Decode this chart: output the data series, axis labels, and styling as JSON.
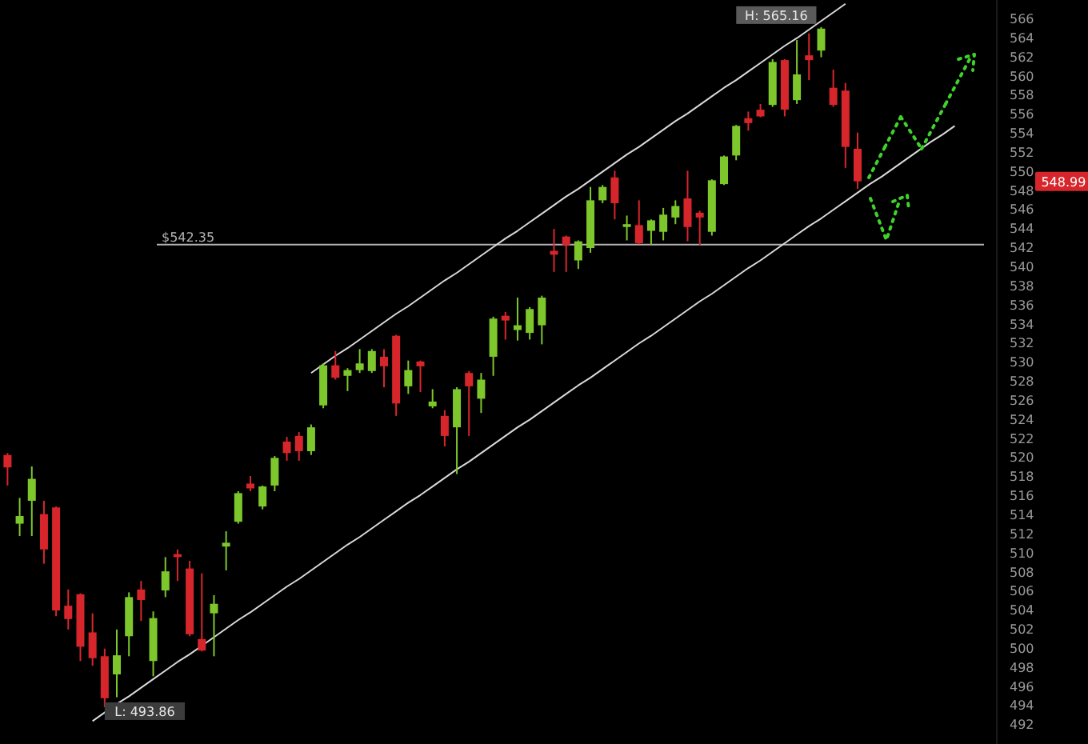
{
  "chart_data": {
    "type": "candlestick",
    "categories": [
      null,
      null,
      null,
      null,
      null,
      null,
      null,
      null,
      null,
      null,
      null,
      null,
      null,
      null,
      null,
      null,
      null,
      null,
      null,
      null,
      null,
      null,
      null,
      null,
      null,
      null,
      null,
      null,
      null,
      null,
      null,
      null,
      null,
      null,
      null,
      null,
      null,
      null,
      null,
      null,
      null,
      null,
      null,
      null,
      null,
      null,
      null,
      null,
      null,
      null,
      null,
      null,
      null,
      null,
      null,
      null,
      null,
      null,
      null,
      null,
      null,
      null,
      null,
      null,
      null,
      null,
      null,
      null,
      null,
      null,
      null,
      null,
      null,
      null,
      null,
      null,
      null,
      null,
      null,
      null,
      null
    ],
    "ohlc": [
      [
        520.3,
        520.5,
        517.1,
        519.0
      ],
      [
        513.1,
        515.8,
        511.8,
        513.9
      ],
      [
        515.5,
        519.1,
        511.8,
        517.8
      ],
      [
        514.1,
        515.5,
        508.9,
        510.4
      ],
      [
        514.8,
        514.9,
        503.4,
        504.0
      ],
      [
        504.5,
        506.2,
        502.0,
        503.1
      ],
      [
        505.7,
        505.8,
        498.7,
        500.2
      ],
      [
        501.7,
        503.7,
        498.2,
        499.0
      ],
      [
        499.2,
        500.0,
        493.86,
        494.8
      ],
      [
        497.3,
        502.0,
        494.9,
        499.3
      ],
      [
        501.3,
        505.9,
        499.2,
        505.4
      ],
      [
        506.2,
        507.1,
        502.9,
        505.1
      ],
      [
        498.7,
        503.9,
        497.1,
        503.2
      ],
      [
        506.1,
        509.6,
        505.4,
        508.1
      ],
      [
        509.9,
        510.4,
        507.1,
        509.6
      ],
      [
        508.4,
        509.2,
        501.3,
        501.5
      ],
      [
        501.0,
        507.9,
        499.7,
        499.8
      ],
      [
        503.7,
        505.6,
        499.2,
        504.7
      ],
      [
        510.7,
        512.3,
        508.2,
        511.1
      ],
      [
        513.3,
        516.5,
        513.1,
        516.3
      ],
      [
        517.3,
        518.1,
        516.5,
        516.8
      ],
      [
        514.9,
        517.1,
        514.6,
        517.0
      ],
      [
        517.1,
        520.2,
        516.5,
        520.0
      ],
      [
        521.7,
        522.2,
        519.7,
        520.5
      ],
      [
        522.3,
        522.7,
        519.7,
        520.7
      ],
      [
        520.7,
        523.5,
        520.3,
        523.2
      ],
      [
        525.5,
        529.9,
        525.2,
        529.7
      ],
      [
        529.7,
        531.2,
        528.2,
        528.4
      ],
      [
        528.6,
        529.4,
        527.0,
        529.2
      ],
      [
        529.2,
        531.4,
        528.9,
        529.9
      ],
      [
        529.1,
        531.4,
        528.9,
        531.2
      ],
      [
        530.6,
        531.4,
        527.4,
        529.6
      ],
      [
        532.8,
        532.9,
        524.4,
        525.7
      ],
      [
        527.5,
        530.2,
        526.7,
        529.2
      ],
      [
        530.1,
        530.2,
        526.9,
        529.6
      ],
      [
        525.4,
        527.2,
        525.2,
        525.9
      ],
      [
        524.4,
        525.0,
        521.2,
        522.3
      ],
      [
        523.2,
        527.4,
        518.3,
        527.2
      ],
      [
        528.9,
        529.1,
        522.3,
        527.5
      ],
      [
        526.2,
        528.9,
        524.7,
        528.2
      ],
      [
        530.6,
        534.8,
        528.6,
        534.6
      ],
      [
        534.9,
        535.3,
        532.4,
        534.4
      ],
      [
        533.4,
        536.8,
        532.3,
        533.9
      ],
      [
        533.1,
        535.8,
        532.4,
        535.6
      ],
      [
        533.9,
        537.0,
        531.9,
        536.8
      ],
      [
        541.7,
        544.0,
        539.5,
        541.3
      ],
      [
        543.2,
        543.3,
        539.5,
        542.3
      ],
      [
        540.7,
        542.8,
        539.8,
        542.7
      ],
      [
        542.0,
        548.4,
        541.5,
        547.0
      ],
      [
        547.0,
        548.6,
        546.7,
        548.4
      ],
      [
        549.4,
        550.1,
        545.0,
        546.7
      ],
      [
        544.2,
        545.4,
        542.8,
        544.5
      ],
      [
        544.4,
        547.0,
        542.4,
        542.5
      ],
      [
        543.8,
        545.0,
        542.3,
        544.9
      ],
      [
        543.7,
        546.2,
        542.8,
        545.5
      ],
      [
        545.2,
        547.0,
        544.5,
        546.4
      ],
      [
        547.2,
        550.1,
        542.7,
        544.2
      ],
      [
        545.7,
        545.9,
        542.3,
        545.2
      ],
      [
        543.7,
        549.2,
        543.3,
        549.1
      ],
      [
        548.7,
        551.7,
        548.6,
        551.6
      ],
      [
        551.7,
        554.9,
        551.2,
        554.8
      ],
      [
        555.6,
        556.3,
        554.3,
        555.1
      ],
      [
        556.5,
        557.1,
        555.7,
        555.8
      ],
      [
        557.0,
        561.8,
        556.8,
        561.5
      ],
      [
        561.7,
        561.8,
        555.8,
        556.5
      ],
      [
        557.5,
        563.8,
        557.1,
        560.2
      ],
      [
        562.2,
        564.5,
        559.6,
        561.7
      ],
      [
        562.7,
        565.16,
        562.0,
        565.0
      ],
      [
        558.8,
        560.7,
        556.8,
        557.0
      ],
      [
        558.5,
        559.3,
        550.4,
        552.6
      ],
      [
        552.4,
        554.1,
        548.2,
        548.99
      ],
      null,
      null,
      null,
      null,
      null,
      null,
      null,
      null,
      null,
      null
    ],
    "series": [
      {
        "type": "line",
        "color": "#d9d9d9",
        "values": [
          null,
          null,
          null,
          null,
          null,
          null,
          null,
          492.4,
          493.3,
          494.2,
          495.0,
          495.9,
          496.8,
          497.7,
          498.6,
          499.4,
          500.3,
          501.2,
          502.1,
          503.0,
          503.8,
          504.7,
          505.6,
          506.5,
          507.3,
          508.2,
          509.1,
          510.0,
          510.9,
          511.7,
          512.6,
          513.5,
          514.4,
          515.3,
          516.1,
          517.0,
          517.9,
          518.8,
          519.6,
          520.5,
          521.4,
          522.3,
          523.2,
          524.0,
          524.9,
          525.8,
          526.7,
          527.6,
          528.4,
          529.3,
          530.2,
          531.1,
          532.0,
          532.8,
          533.7,
          534.6,
          535.5,
          536.4,
          537.2,
          538.1,
          539.0,
          539.9,
          540.7,
          541.6,
          542.5,
          543.4,
          544.3,
          545.1,
          546.0,
          546.9,
          547.8,
          548.7,
          549.5,
          550.4,
          551.3,
          552.2,
          553.1,
          553.9,
          554.8,
          null,
          null
        ]
      },
      {
        "type": "line",
        "color": "#d9d9d9",
        "values": [
          null,
          null,
          null,
          null,
          null,
          null,
          null,
          null,
          null,
          null,
          null,
          null,
          null,
          null,
          null,
          null,
          null,
          null,
          null,
          null,
          null,
          null,
          null,
          null,
          null,
          528.9,
          529.8,
          530.7,
          531.5,
          532.4,
          533.3,
          534.2,
          535.1,
          535.9,
          536.8,
          537.7,
          538.6,
          539.4,
          540.3,
          541.2,
          542.1,
          543.0,
          543.8,
          544.7,
          545.6,
          546.5,
          547.4,
          548.2,
          549.1,
          550.0,
          550.9,
          551.8,
          552.6,
          553.5,
          554.4,
          555.3,
          556.1,
          557.0,
          557.9,
          558.8,
          559.6,
          560.5,
          561.4,
          562.3,
          563.2,
          564.0,
          564.9,
          565.8,
          566.7,
          567.6,
          null,
          null,
          null,
          null,
          null,
          null,
          null,
          null,
          null,
          null,
          null
        ]
      }
    ],
    "ylim": [
      490,
      568
    ],
    "yticks": [
      492,
      494,
      496,
      498,
      500,
      502,
      504,
      506,
      508,
      510,
      512,
      514,
      516,
      518,
      520,
      522,
      524,
      526,
      528,
      530,
      532,
      534,
      536,
      538,
      540,
      542,
      544,
      546,
      548,
      550,
      552,
      554,
      556,
      558,
      560,
      562,
      564,
      566
    ],
    "tick_labels": "y",
    "ref_lines": [
      {
        "axis": "y",
        "value": 542.35,
        "label": "$542.35",
        "color": "#b3b3b3"
      }
    ],
    "annotations": [
      "H: 565.16",
      "L: 493.86",
      "548.99"
    ]
  }
}
